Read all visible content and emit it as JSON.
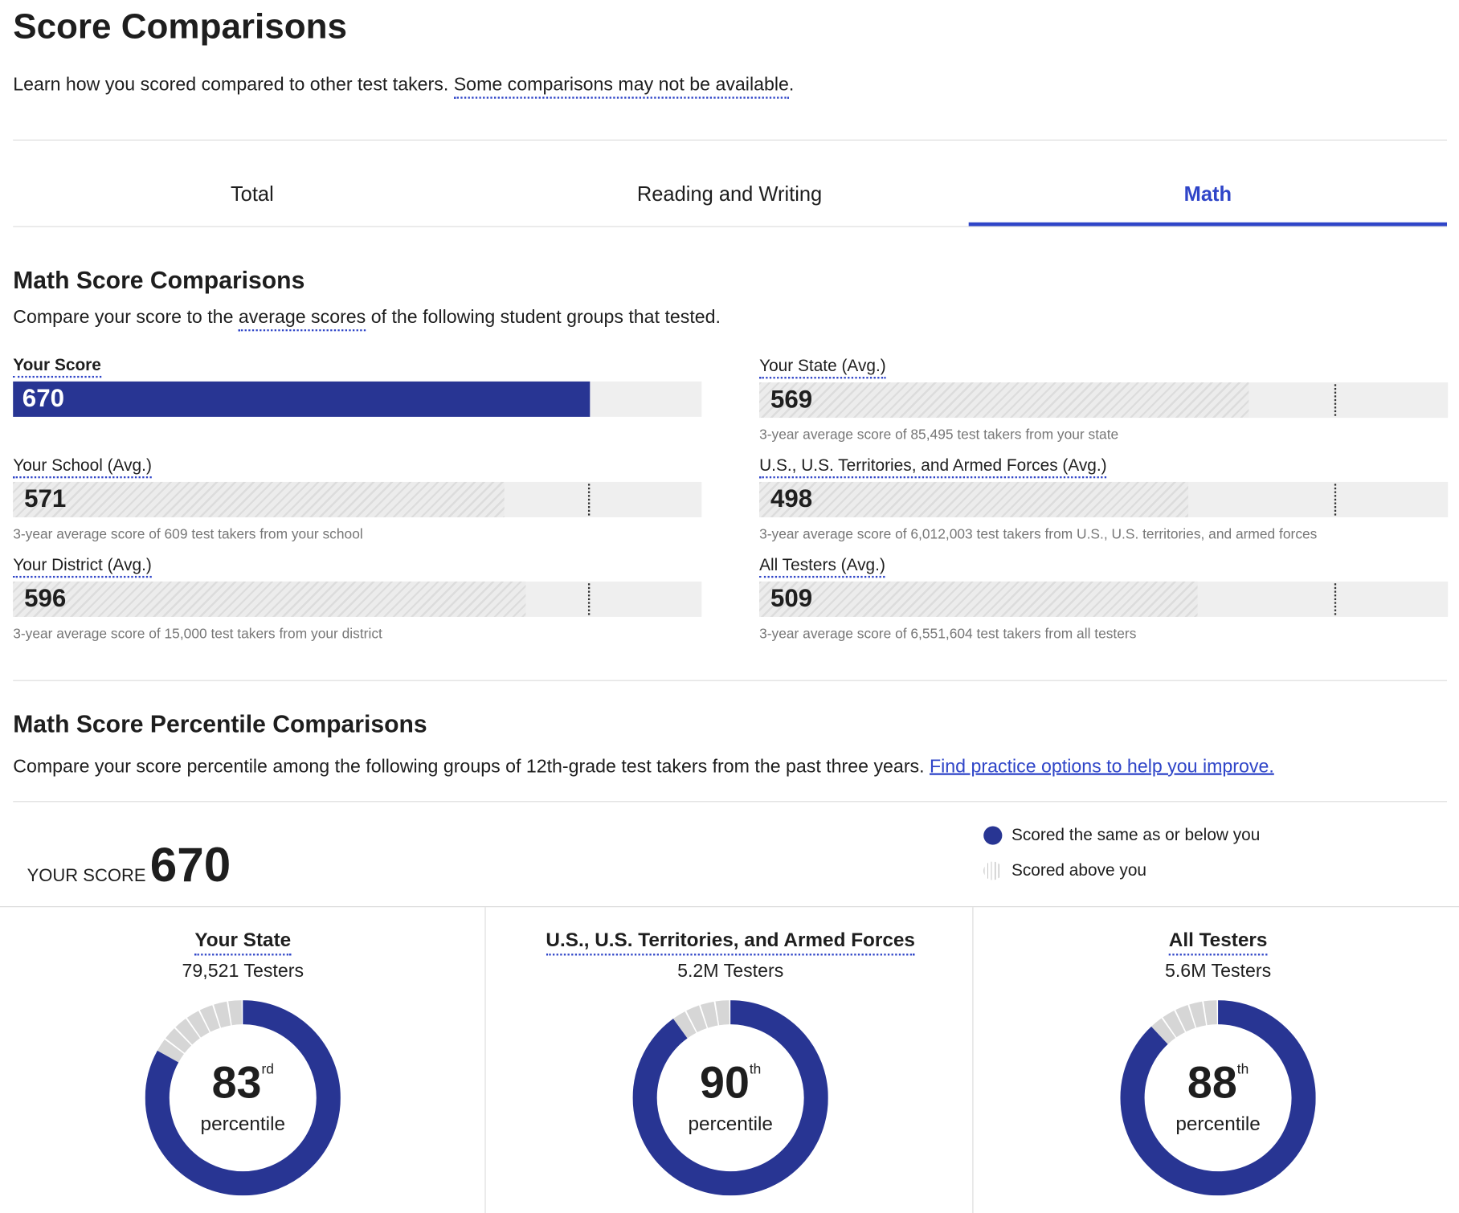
{
  "page": {
    "title": "Score Comparisons",
    "intro": "Learn how you scored compared to other test takers.",
    "intro_link": "Some comparisons may not be available",
    "intro_end": "."
  },
  "tabs": [
    {
      "label": "Total",
      "active": false
    },
    {
      "label": "Reading and Writing",
      "active": false
    },
    {
      "label": "Math",
      "active": true
    }
  ],
  "comparisons": {
    "title": "Math Score Comparisons",
    "sub_pre": "Compare your score to the",
    "sub_link": "average scores",
    "sub_post": "of the following student groups that tested.",
    "scale_max": 800,
    "your_score": {
      "label": "Your Score",
      "value": 670
    },
    "groups": [
      {
        "label": "Your School (Avg.)",
        "value": 571,
        "note": "3-year average score of 609 test takers from your school"
      },
      {
        "label": "Your District (Avg.)",
        "value": 596,
        "note": "3-year average score of 15,000 test takers from your district"
      },
      {
        "label": "Your State (Avg.)",
        "value": 569,
        "note": "3-year average score of 85,495 test takers from your state"
      },
      {
        "label": "U.S., U.S. Territories, and Armed Forces (Avg.)",
        "value": 498,
        "note": "3-year average score of 6,012,003 test takers from U.S., U.S. territories, and armed forces"
      },
      {
        "label": "All Testers (Avg.)",
        "value": 509,
        "note": "3-year average score of 6,551,604 test takers from all testers"
      }
    ]
  },
  "percentiles": {
    "title": "Math Score Percentile Comparisons",
    "sub": "Compare your score percentile among the following groups of 12th-grade test takers from the past three years.",
    "sub_link": "Find practice options to help you improve.",
    "your_score_label": "YOUR SCORE",
    "your_score": "670",
    "legend": [
      {
        "label": "Scored the same as or below you",
        "icon": "solid-circle"
      },
      {
        "label": "Scored above you",
        "icon": "striped-circle"
      }
    ],
    "groups": [
      {
        "title": "Your State",
        "testers": "79,521 Testers",
        "percentile": 83,
        "suffix": "rd",
        "label": "percentile"
      },
      {
        "title": "U.S., U.S. Territories, and Armed Forces",
        "testers": "5.2M Testers",
        "percentile": 90,
        "suffix": "th",
        "label": "percentile"
      },
      {
        "title": "All Testers",
        "testers": "5.6M Testers",
        "percentile": 88,
        "suffix": "th",
        "label": "percentile"
      }
    ]
  },
  "colors": {
    "accent": "#2f45c8",
    "bar": "#283593",
    "track": "#efefef",
    "above": "#d6d6d6"
  }
}
